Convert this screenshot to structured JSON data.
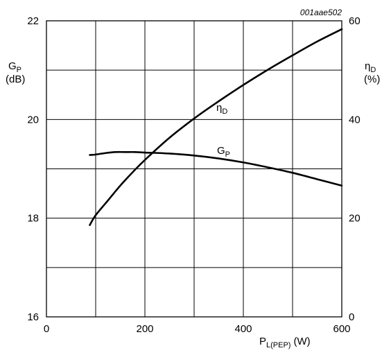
{
  "chart_data": {
    "type": "line",
    "figure_code": "001aae502",
    "x_axis": {
      "label_main": "P",
      "label_sub": "L(PEP)",
      "label_unit": "(W)",
      "range": [
        0,
        600
      ],
      "ticks": [
        "0",
        "200",
        "400",
        "600"
      ]
    },
    "y_left": {
      "label_symbol": "G",
      "label_sub": "P",
      "label_unit": "(dB)",
      "range": [
        16,
        22
      ],
      "ticks": [
        "16",
        "18",
        "20",
        "22"
      ]
    },
    "y_right": {
      "label_symbol": "η",
      "label_sub": "D",
      "label_unit": "(%)",
      "range": [
        0,
        60
      ],
      "ticks": [
        "0",
        "20",
        "40",
        "60"
      ]
    },
    "grid": true,
    "series": [
      {
        "name": "GP",
        "label_main": "G",
        "label_sub": "P",
        "axis": "left",
        "x": [
          88,
          100,
          120,
          140,
          160,
          180,
          200,
          250,
          300,
          350,
          400,
          450,
          500,
          550,
          600
        ],
        "y": [
          19.28,
          19.29,
          19.32,
          19.34,
          19.34,
          19.34,
          19.33,
          19.31,
          19.27,
          19.21,
          19.13,
          19.03,
          18.92,
          18.79,
          18.66
        ]
      },
      {
        "name": "ηD",
        "label_main": "η",
        "label_sub": "D",
        "axis": "right",
        "x": [
          88,
          100,
          125,
          150,
          175,
          200,
          250,
          300,
          350,
          400,
          450,
          500,
          550,
          600
        ],
        "y": [
          18.6,
          20.6,
          23.6,
          26.6,
          29.3,
          31.8,
          36.3,
          40.2,
          43.7,
          47.0,
          50.1,
          53.0,
          55.8,
          58.3
        ]
      }
    ]
  }
}
